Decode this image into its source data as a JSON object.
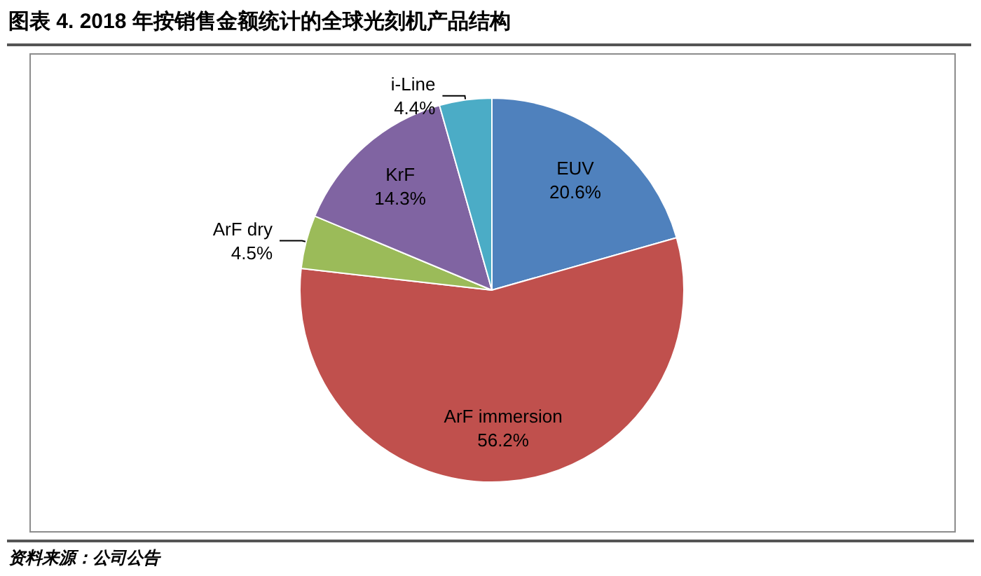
{
  "chart_data": {
    "type": "pie",
    "title": "图表 4. 2018 年按销售金额统计的全球光刻机产品结构",
    "categories": [
      "EUV",
      "ArF immersion",
      "ArF dry",
      "KrF",
      "i-Line"
    ],
    "values": [
      20.6,
      56.2,
      4.5,
      14.3,
      4.4
    ],
    "value_labels": [
      "20.6%",
      "56.2%",
      "4.5%",
      "14.3%",
      "4.4%"
    ],
    "colors": [
      "#4f81bd",
      "#c0504d",
      "#9bbb59",
      "#8064a2",
      "#4bacc6"
    ],
    "legend": false,
    "annotations": [
      "资料来源：公司公告"
    ]
  }
}
